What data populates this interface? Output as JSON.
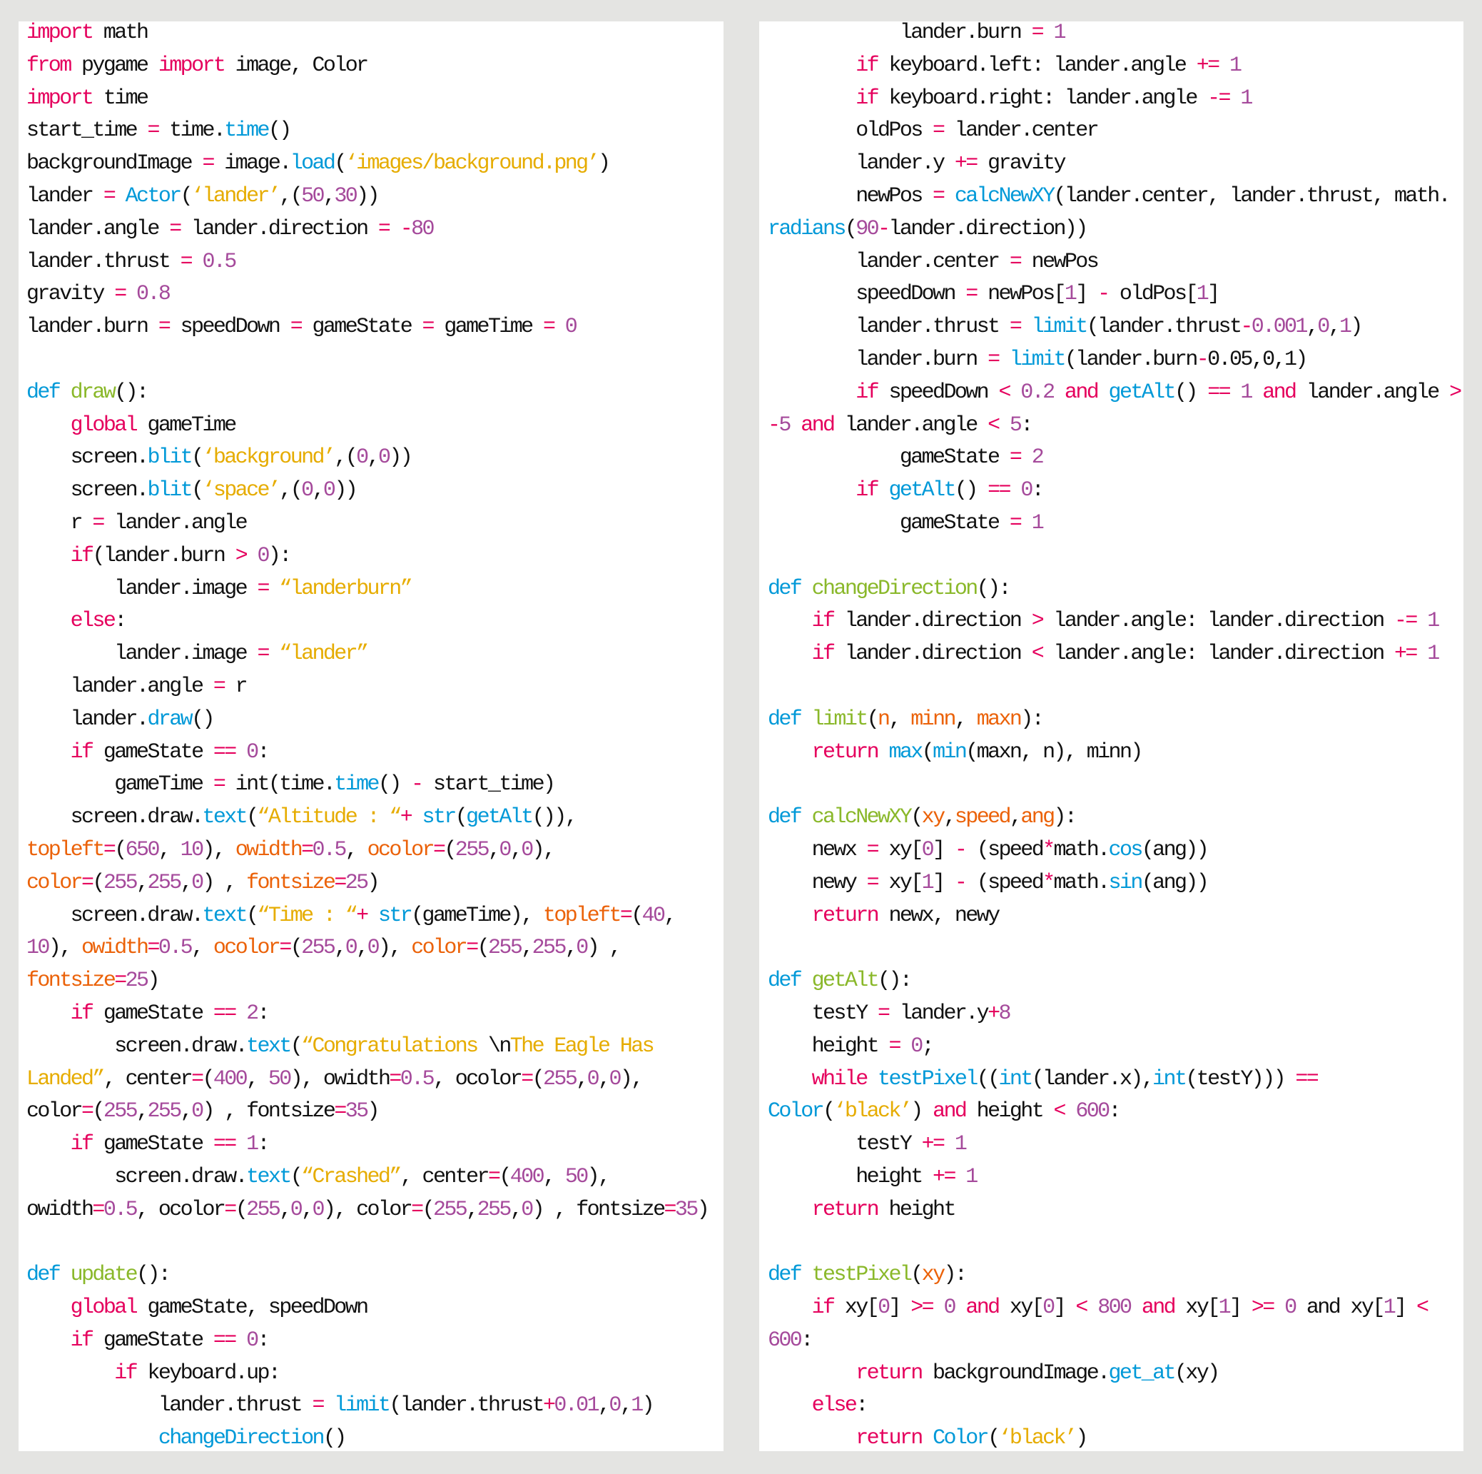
{
  "colors": {
    "keyword": "#e5005d",
    "builtin": "#0099d8",
    "string": "#e6ac00",
    "number": "#a54a9b",
    "function_name": "#8ab82a",
    "parameter": "#eb6209",
    "background": "#e4e4e2",
    "panel": "#ffffff"
  },
  "left_panel": {
    "lines": [
      "{k|import} math",
      "{k|from} pygame {k|import} image, Color",
      "{k|import} time",
      "start_time {k|=} time.{b|time}()",
      "backgroundImage {k|=} image.{b|load}({s|‘images/background.png’})",
      "lander {k|=} {b|Actor}({s|‘lander’},({n|50},{n|30}))",
      "lander.angle {k|=} lander.direction {k|=} {k|-}{n|80}",
      "lander.thrust {k|=} {n|0.5}",
      "gravity {k|=} {n|0.8}",
      "lander.burn {k|=} speedDown {k|=} gameState {k|=} gameTime {k|=} {n|0}",
      "",
      "{b|def} {g|draw}():",
      "    {k|global} gameTime",
      "    screen.{b|blit}({s|‘background’},({n|0},{n|0}))",
      "    screen.{b|blit}({s|‘space’},({n|0},{n|0}))",
      "    r {k|=} lander.angle",
      "    {k|if}(lander.burn {k|>} {n|0}):",
      "        lander.image {k|=} {s|“landerburn”}",
      "    {k|else}:",
      "        lander.image {k|=} {s|“lander”}",
      "    lander.angle {k|=} r",
      "    lander.{b|draw}()",
      "    {k|if} gameState {k|==} {n|0}:",
      "        gameTime {k|=} int(time.{b|time}() {k|-} start_time)",
      "    screen.draw.{b|text}({s|“Altitude : “}{k|+} {b|str}({b|getAlt}()),",
      "{a|topleft}{k|=}({n|650}, {n|10}), {a|owidth}{k|=}{n|0.5}, {a|ocolor}{k|=}({n|255},{n|0},{n|0}),",
      "{a|color}{k|=}({n|255},{n|255},{n|0}) , {a|fontsize}{k|=}{n|25})",
      "    screen.draw.{b|text}({s|“Time : “}{k|+} {b|str}(gameTime), {a|topleft}{k|=}({n|40},",
      "{n|10}), {a|owidth}{k|=}{n|0.5}, {a|ocolor}{k|=}({n|255},{n|0},{n|0}), {a|color}{k|=}({n|255},{n|255},{n|0}) ,",
      "{a|fontsize}{k|=}{n|25})",
      "    {k|if} gameState {k|==} {n|2}:",
      "        screen.draw.{b|text}({s|“Congratulations }\\n{s|The Eagle Has}",
      "{s|Landed”}, center{k|=}({n|400}, {n|50}), owidth{k|=}{n|0.5}, ocolor{k|=}({n|255},{n|0},{n|0}),",
      "color{k|=}({n|255},{n|255},{n|0}) , fontsize{k|=}{n|35})",
      "    {k|if} gameState {k|==} {n|1}:",
      "        screen.draw.{b|text}({s|“Crashed”}, center{k|=}({n|400}, {n|50}),",
      "owidth{k|=}{n|0.5}, ocolor{k|=}({n|255},{n|0},{n|0}), color{k|=}({n|255},{n|255},{n|0}) , fontsize{k|=}{n|35})",
      "",
      "{b|def} {g|update}():",
      "    {k|global} gameState, speedDown",
      "    {k|if} gameState {k|==} {n|0}:",
      "        {k|if} keyboard.up:",
      "            lander.thrust {k|=} {b|limit}(lander.thrust{k|+}{n|0.01},{n|0},{n|1})",
      "            {b|changeDirection}()"
    ]
  },
  "right_panel": {
    "lines": [
      "            lander.burn {k|=} {n|1}",
      "        {k|if} keyboard.left: lander.angle {k|+=} {n|1}",
      "        {k|if} keyboard.right: lander.angle {k|-=} {n|1}",
      "        oldPos {k|=} lander.center",
      "        lander.y {k|+=} gravity",
      "        newPos {k|=} {b|calcNewXY}(lander.center, lander.thrust, math.",
      "{b|radians}({n|90}{k|-}lander.direction))",
      "        lander.center {k|=} newPos",
      "        speedDown {k|=} newPos[{n|1}] {k|-} oldPos[{n|1}]",
      "        lander.thrust {k|=} {b|limit}(lander.thrust{k|-}{n|0.001},{n|0},{n|1})",
      "        lander.burn {k|=} {b|limit}(lander.burn{k|-}0.05,0,1)",
      "        {k|if} speedDown {k|<} {n|0.2} {k|and} {b|getAlt}() {k|==} {n|1} {k|and} lander.angle {k|>}",
      "{k|-}{n|5} {k|and} lander.angle {k|<} {n|5}:",
      "            gameState {k|=} {n|2}",
      "        {k|if} {b|getAlt}() {k|==} {n|0}:",
      "            gameState {k|=} {n|1}",
      "",
      "{b|def} {g|changeDirection}():",
      "    {k|if} lander.direction {k|>} lander.angle: lander.direction {k|-=} {n|1}",
      "    {k|if} lander.direction {k|<} lander.angle: lander.direction {k|+=} {n|1}",
      "",
      "{b|def} {g|limit}({a|n}, {a|minn}, {a|maxn}):",
      "    {k|return} {b|max}({b|min}(maxn, n), minn)",
      "",
      "{b|def} {g|calcNewXY}({a|xy},{a|speed},{a|ang}):",
      "    newx {k|=} xy[{n|0}] {k|-} (speed{k|*}math.{b|cos}(ang))",
      "    newy {k|=} xy[{n|1}] {k|-} (speed{k|*}math.{b|sin}(ang))",
      "    {k|return} newx, newy",
      "",
      "{b|def} {g|getAlt}():",
      "    testY {k|=} lander.y{k|+}{n|8}",
      "    height {k|=} {n|0};",
      "    {k|while} {b|testPixel}(({b|int}(lander.x),{b|int}(testY))) {k|==}",
      "{b|Color}({s|‘black’}) {k|and} height {k|<} {n|600}:",
      "        testY {k|+=} {n|1}",
      "        height {k|+=} {n|1}",
      "    {k|return} height",
      "",
      "{b|def} {g|testPixel}({a|xy}):",
      "    {k|if} xy[{n|0}] {k|>=} {n|0} {k|and} xy[{n|0}] {k|<} {n|800} {k|and} xy[{n|1}] {k|>=} {n|0} and xy[{n|1}] {k|<}",
      "{n|600}:",
      "        {k|return} backgroundImage.{b|get_at}(xy)",
      "    {k|else}:",
      "        {k|return} {b|Color}({s|‘black’})"
    ]
  }
}
